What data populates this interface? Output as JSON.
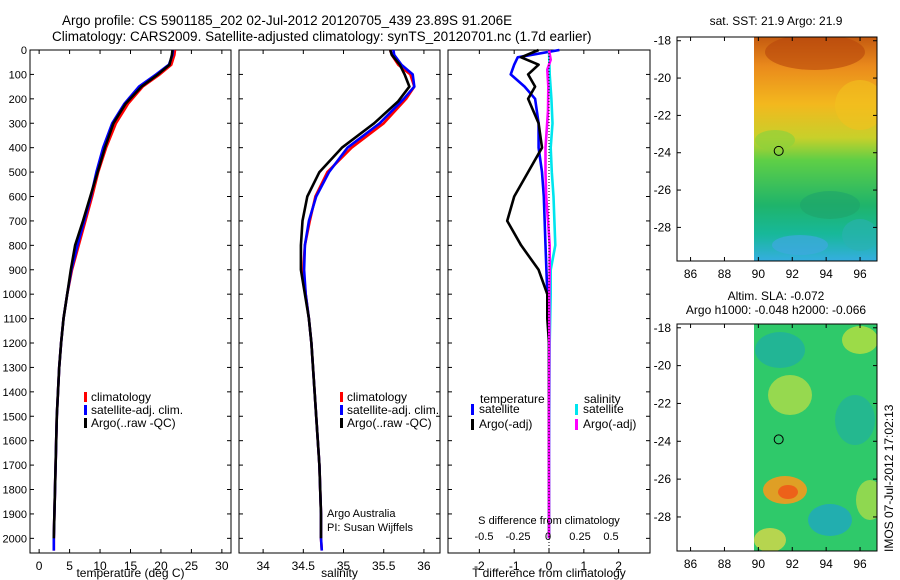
{
  "header": {
    "line1": "Argo profile: CS 5901185_202 02-Jul-2012 20120705_439 23.89S 91.206E",
    "line2": "Climatology: CARS2009. Satellite-adjusted climatology: synTS_20120701.nc (1.7d earlier)"
  },
  "colors": {
    "climatology": "#ff0000",
    "satellite": "#0000ff",
    "argo": "#000000",
    "sal_satellite": "#00e5ee",
    "sal_argo": "#ff00ff"
  },
  "chart_data": [
    {
      "id": "temperature",
      "type": "line",
      "xlabel": "temperature (deg C)",
      "xticks": [
        "0",
        "5",
        "10",
        "15",
        "20",
        "25",
        "30"
      ],
      "xlim": [
        -1.5,
        31.5
      ],
      "ylim": [
        0,
        2060
      ],
      "yticks": [
        "0",
        "100",
        "200",
        "300",
        "400",
        "500",
        "600",
        "700",
        "800",
        "900",
        "1000",
        "1100",
        "1200",
        "1300",
        "1400",
        "1500",
        "1600",
        "1700",
        "1800",
        "1900",
        "2000"
      ],
      "legend": [
        "climatology",
        "satellite-adj. clim.",
        "Argo(..raw -QC)"
      ],
      "series": [
        {
          "name": "climatology",
          "points": [
            [
              22.3,
              0
            ],
            [
              22.2,
              20
            ],
            [
              21.7,
              60
            ],
            [
              19.8,
              100
            ],
            [
              17.0,
              150
            ],
            [
              14.6,
              220
            ],
            [
              12.6,
              300
            ],
            [
              11.0,
              400
            ],
            [
              9.7,
              500
            ],
            [
              8.7,
              600
            ],
            [
              7.6,
              700
            ],
            [
              6.5,
              800
            ],
            [
              5.4,
              900
            ],
            [
              4.6,
              1000
            ],
            [
              4.0,
              1100
            ],
            [
              3.6,
              1200
            ],
            [
              3.3,
              1300
            ],
            [
              3.1,
              1400
            ],
            [
              2.9,
              1500
            ],
            [
              2.8,
              1600
            ],
            [
              2.7,
              1700
            ],
            [
              2.6,
              1800
            ],
            [
              2.5,
              1900
            ],
            [
              2.4,
              2000
            ],
            [
              2.4,
              2050
            ]
          ]
        },
        {
          "name": "satellite-adj. clim.",
          "points": [
            [
              22.0,
              0
            ],
            [
              21.9,
              20
            ],
            [
              21.3,
              60
            ],
            [
              19.2,
              100
            ],
            [
              16.4,
              150
            ],
            [
              14.0,
              220
            ],
            [
              12.0,
              300
            ],
            [
              10.5,
              400
            ],
            [
              9.4,
              500
            ],
            [
              8.5,
              600
            ],
            [
              7.4,
              700
            ],
            [
              6.3,
              800
            ],
            [
              5.3,
              900
            ],
            [
              4.6,
              1000
            ],
            [
              4.0,
              1100
            ],
            [
              3.6,
              1200
            ],
            [
              3.3,
              1300
            ],
            [
              3.1,
              1400
            ],
            [
              2.9,
              1500
            ],
            [
              2.8,
              1600
            ],
            [
              2.7,
              1700
            ],
            [
              2.6,
              1800
            ],
            [
              2.5,
              1900
            ],
            [
              2.4,
              2000
            ],
            [
              2.4,
              2050
            ]
          ]
        },
        {
          "name": "Argo(..raw -QC)",
          "points": [
            [
              21.9,
              0
            ],
            [
              21.8,
              20
            ],
            [
              21.4,
              60
            ],
            [
              19.5,
              100
            ],
            [
              16.8,
              150
            ],
            [
              14.2,
              220
            ],
            [
              12.2,
              300
            ],
            [
              10.8,
              400
            ],
            [
              9.6,
              500
            ],
            [
              8.4,
              600
            ],
            [
              7.2,
              700
            ],
            [
              5.9,
              800
            ],
            [
              5.2,
              900
            ],
            [
              4.6,
              1000
            ],
            [
              4.0,
              1100
            ],
            [
              3.6,
              1200
            ],
            [
              3.3,
              1300
            ],
            [
              3.1,
              1400
            ],
            [
              2.9,
              1500
            ],
            [
              2.8,
              1600
            ],
            [
              2.7,
              1700
            ],
            [
              2.6,
              1800
            ],
            [
              2.5,
              1900
            ],
            [
              2.4,
              2000
            ]
          ]
        }
      ]
    },
    {
      "id": "salinity",
      "type": "line",
      "xlabel": "salinity",
      "xticks": [
        "34",
        "34.5",
        "35",
        "35.5",
        "36"
      ],
      "xlim": [
        33.7,
        36.2
      ],
      "ylim": [
        0,
        2060
      ],
      "legend": [
        "climatology",
        "satellite-adj. clim.",
        "Argo(..raw -QC)"
      ],
      "annotations": [
        "Argo Australia",
        "PI: Susan Wijffels"
      ],
      "series": [
        {
          "name": "climatology",
          "points": [
            [
              35.58,
              0
            ],
            [
              35.6,
              20
            ],
            [
              35.68,
              60
            ],
            [
              35.83,
              100
            ],
            [
              35.88,
              150
            ],
            [
              35.78,
              200
            ],
            [
              35.5,
              300
            ],
            [
              35.1,
              400
            ],
            [
              34.8,
              500
            ],
            [
              34.65,
              600
            ],
            [
              34.58,
              700
            ],
            [
              34.52,
              800
            ],
            [
              34.5,
              900
            ],
            [
              34.53,
              1000
            ],
            [
              34.57,
              1100
            ],
            [
              34.6,
              1200
            ],
            [
              34.62,
              1300
            ],
            [
              34.64,
              1400
            ],
            [
              34.66,
              1500
            ],
            [
              34.68,
              1600
            ],
            [
              34.7,
              1700
            ],
            [
              34.71,
              1800
            ],
            [
              34.72,
              1900
            ],
            [
              34.72,
              2000
            ],
            [
              34.73,
              2050
            ]
          ]
        },
        {
          "name": "satellite-adj. clim.",
          "points": [
            [
              35.62,
              0
            ],
            [
              35.63,
              20
            ],
            [
              35.72,
              60
            ],
            [
              35.86,
              100
            ],
            [
              35.88,
              150
            ],
            [
              35.75,
              200
            ],
            [
              35.45,
              300
            ],
            [
              35.05,
              400
            ],
            [
              34.82,
              500
            ],
            [
              34.66,
              600
            ],
            [
              34.57,
              700
            ],
            [
              34.52,
              800
            ],
            [
              34.51,
              900
            ],
            [
              34.53,
              1000
            ],
            [
              34.57,
              1100
            ],
            [
              34.6,
              1200
            ],
            [
              34.62,
              1300
            ],
            [
              34.64,
              1400
            ],
            [
              34.66,
              1500
            ],
            [
              34.68,
              1600
            ],
            [
              34.7,
              1700
            ],
            [
              34.71,
              1800
            ],
            [
              34.72,
              1900
            ],
            [
              34.72,
              2000
            ],
            [
              34.73,
              2050
            ]
          ]
        },
        {
          "name": "Argo(..raw -QC)",
          "points": [
            [
              35.58,
              0
            ],
            [
              35.6,
              20
            ],
            [
              35.7,
              60
            ],
            [
              35.76,
              100
            ],
            [
              35.82,
              150
            ],
            [
              35.68,
              210
            ],
            [
              35.38,
              300
            ],
            [
              34.98,
              400
            ],
            [
              34.7,
              500
            ],
            [
              34.55,
              600
            ],
            [
              34.49,
              700
            ],
            [
              34.47,
              800
            ],
            [
              34.47,
              900
            ],
            [
              34.52,
              1000
            ],
            [
              34.57,
              1100
            ],
            [
              34.6,
              1200
            ],
            [
              34.62,
              1300
            ],
            [
              34.64,
              1400
            ],
            [
              34.66,
              1500
            ],
            [
              34.68,
              1600
            ],
            [
              34.7,
              1700
            ],
            [
              34.71,
              1800
            ],
            [
              34.72,
              1900
            ],
            [
              34.72,
              2000
            ]
          ]
        }
      ]
    },
    {
      "id": "difference",
      "type": "line",
      "xlabel": "T difference from climatology",
      "xlabel_top": "S difference from climatology",
      "xticks": [
        "-2",
        "-1",
        "0",
        "1",
        "2"
      ],
      "xticks_top": [
        "-0.5",
        "-0.25",
        "0",
        "0.25",
        "0.5"
      ],
      "xlim": [
        -2.9,
        2.9
      ],
      "ylim": [
        0,
        2060
      ],
      "legend_titles": [
        "temperature",
        "salinity"
      ],
      "legend": [
        "satellite",
        "Argo(-adj)",
        "satellite",
        "Argo(-adj)"
      ],
      "series": [
        {
          "name": "temperature satellite",
          "points": [
            [
              0.3,
              0
            ],
            [
              -0.9,
              30
            ],
            [
              -1.0,
              60
            ],
            [
              -1.1,
              100
            ],
            [
              -0.7,
              150
            ],
            [
              -0.4,
              200
            ],
            [
              -0.3,
              300
            ],
            [
              -0.3,
              400
            ],
            [
              -0.2,
              500
            ],
            [
              -0.15,
              600
            ],
            [
              -0.1,
              800
            ],
            [
              -0.05,
              1000
            ],
            [
              0,
              1200
            ],
            [
              0,
              2000
            ]
          ]
        },
        {
          "name": "temperature Argo(-adj)",
          "points": [
            [
              -0.3,
              0
            ],
            [
              -0.8,
              30
            ],
            [
              -0.3,
              60
            ],
            [
              -0.6,
              100
            ],
            [
              -0.4,
              150
            ],
            [
              -0.6,
              200
            ],
            [
              -0.3,
              300
            ],
            [
              -0.2,
              400
            ],
            [
              -0.6,
              500
            ],
            [
              -1.0,
              600
            ],
            [
              -1.2,
              700
            ],
            [
              -0.8,
              800
            ],
            [
              -0.3,
              900
            ],
            [
              -0.05,
              1000
            ],
            [
              -0.05,
              1100
            ],
            [
              0,
              1200
            ],
            [
              0,
              2000
            ]
          ]
        },
        {
          "name": "salinity satellite",
          "points": [
            [
              0,
              0
            ],
            [
              0.02,
              100
            ],
            [
              0.07,
              200
            ],
            [
              0.1,
              300
            ],
            [
              0.05,
              400
            ],
            [
              0.08,
              500
            ],
            [
              0.13,
              600
            ],
            [
              0.18,
              800
            ],
            [
              0.05,
              900
            ],
            [
              0.05,
              1000
            ],
            [
              0.02,
              1200
            ],
            [
              0.01,
              1500
            ],
            [
              0,
              2000
            ]
          ]
        },
        {
          "name": "salinity Argo(-adj)",
          "points": [
            [
              0,
              0
            ],
            [
              0.05,
              40
            ],
            [
              -0.05,
              80
            ],
            [
              -0.02,
              150
            ],
            [
              -0.03,
              250
            ],
            [
              -0.1,
              400
            ],
            [
              -0.1,
              500
            ],
            [
              -0.08,
              600
            ],
            [
              -0.03,
              700
            ],
            [
              0.02,
              800
            ],
            [
              0.02,
              900
            ],
            [
              0.01,
              1000
            ],
            [
              0.01,
              1200
            ],
            [
              0,
              1500
            ],
            [
              0,
              2000
            ]
          ]
        }
      ]
    },
    {
      "id": "sst_map",
      "type": "heatmap",
      "title": "sat. SST: 21.9 Argo: 21.9",
      "xticks": [
        "86",
        "88",
        "90",
        "92",
        "94",
        "96"
      ],
      "yticks": [
        "-18",
        "-20",
        "-22",
        "-24",
        "-26",
        "-28"
      ],
      "xlim": [
        85.2,
        97.0
      ],
      "ylim": [
        -29.8,
        -17.8
      ],
      "marker": [
        91.2,
        -23.9
      ]
    },
    {
      "id": "sla_map",
      "type": "heatmap",
      "title": "Altim. SLA: -0.072",
      "subtitle": "Argo h1000: -0.048 h2000: -0.066",
      "xticks": [
        "86",
        "88",
        "90",
        "92",
        "94",
        "96"
      ],
      "yticks": [
        "-18",
        "-20",
        "-22",
        "-24",
        "-26",
        "-28"
      ],
      "xlim": [
        85.2,
        97.0
      ],
      "ylim": [
        -29.8,
        -17.8
      ],
      "marker": [
        91.2,
        -23.9
      ]
    }
  ],
  "footer": {
    "stamp": "IMOS 07-Jul-2012 17:02:13"
  }
}
